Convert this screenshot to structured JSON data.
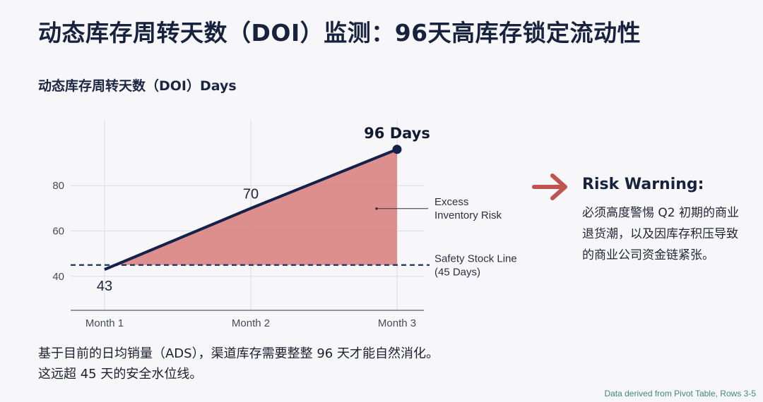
{
  "page": {
    "title": "动态库存周转天数（DOI）监测：96天高库存锁定流动性",
    "note_lines": [
      "基于目前的日均销量（ADS），渠道库存需要整整 96 天才能自然消化。",
      "这远超 45 天的安全水位线。"
    ],
    "source": "Data derived from Pivot Table, Rows 3-5"
  },
  "warning": {
    "title": "Risk Warning:",
    "text": "必须高度警惕 Q2 初期的商业退货潮，以及因库存积压导致的商业公司资金链紧张。",
    "arrow_icon": "right-arrow-icon",
    "arrow_color": "#c0554f"
  },
  "chart_data": {
    "type": "line",
    "title": "动态库存周转天数（DOI）Days",
    "categories": [
      "Month 1",
      "Month 2",
      "Month 3"
    ],
    "values": [
      43,
      70,
      96
    ],
    "point_labels": [
      "43",
      "70",
      "96 Days"
    ],
    "yticks": [
      40,
      60,
      80
    ],
    "ylim": [
      25,
      109
    ],
    "grid": true,
    "reference_line": {
      "label_lines": [
        "Safety Stock Line",
        "(45 Days)"
      ],
      "value": 45,
      "style": "dashed"
    },
    "shaded_region_label_lines": [
      "Excess",
      "Inventory Risk"
    ],
    "colors": {
      "line": "#13224a",
      "fill": "#d98582",
      "ref": "#1c3264",
      "grid": "#dcdde2"
    }
  }
}
